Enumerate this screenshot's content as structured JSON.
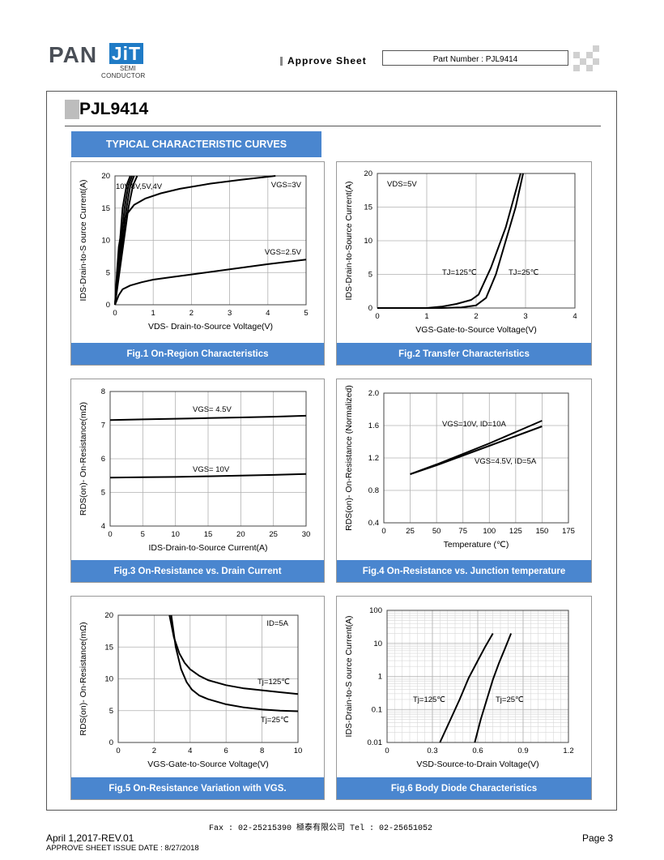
{
  "header": {
    "logo_pan": "PAN",
    "logo_jit": "JiT",
    "logo_semi": "SEMI",
    "logo_conductor": "CONDUCTOR",
    "approve_sheet": "Approve Sheet",
    "part_number": "Part Number : PJL9414"
  },
  "title": "PJL9414",
  "section_title": "TYPICAL CHARACTERISTIC CURVES",
  "colors": {
    "accent": "#4a86cf",
    "grid": "#b0b0b0"
  },
  "figures": [
    {
      "caption": "Fig.1 On-Region Characteristics"
    },
    {
      "caption": "Fig.2 Transfer Characteristics"
    },
    {
      "caption": "Fig.3 On-Resistance vs. Drain Current"
    },
    {
      "caption": "Fig.4 On-Resistance vs. Junction temperature"
    },
    {
      "caption": "Fig.5 On-Resistance Variation with VGS."
    },
    {
      "caption": "Fig.6 Body Diode Characteristics"
    }
  ],
  "chart_data": [
    {
      "type": "line",
      "xlabel": "VDS- Drain-to-Source Voltage(V)",
      "ylabel": "IDS-Drain-to-S ource Current(A)",
      "xlim": [
        0,
        5
      ],
      "ylim": [
        0,
        20
      ],
      "xticks": [
        "0",
        "1",
        "2",
        "3",
        "4",
        "5"
      ],
      "yticks": [
        "0",
        "5",
        "10",
        "15",
        "20"
      ],
      "series": [
        {
          "name": "VGS=3V",
          "x": [
            0,
            0.05,
            0.1,
            0.2,
            0.3,
            0.5,
            0.8,
            1.2,
            1.7,
            2.5,
            3.3,
            4.2
          ],
          "y": [
            0,
            5,
            9,
            12.5,
            14,
            15.5,
            16.5,
            17.3,
            18,
            18.8,
            19.4,
            20
          ]
        },
        {
          "name": "VGS=2.5V",
          "x": [
            0,
            0.1,
            0.2,
            0.4,
            0.7,
            1.0,
            1.5,
            2,
            3,
            4,
            5
          ],
          "y": [
            0,
            1.5,
            2.4,
            3,
            3.5,
            3.9,
            4.3,
            4.7,
            5.5,
            6.3,
            7
          ]
        },
        {
          "name": "10V,8V,5V,4V",
          "x": [
            0,
            0.2,
            0.3,
            0.4
          ],
          "y": [
            0,
            15,
            18.5,
            20
          ]
        },
        {
          "name": "",
          "x": [
            0,
            0.25,
            0.35,
            0.45
          ],
          "y": [
            0,
            15,
            18.5,
            20
          ]
        },
        {
          "name": "",
          "x": [
            0,
            0.3,
            0.4,
            0.5
          ],
          "y": [
            0,
            15,
            18.5,
            20
          ]
        },
        {
          "name": "",
          "x": [
            0,
            0.35,
            0.47,
            0.58
          ],
          "y": [
            0,
            15,
            18.5,
            20
          ]
        }
      ],
      "annotations": [
        "10V,8V,5V,4V",
        "VGS=3V",
        "VGS=2.5V"
      ]
    },
    {
      "type": "line",
      "xlabel": "VGS-Gate-to-Source Voltage(V)",
      "ylabel": "IDS-Drain-to-Source Current(A)",
      "xlim": [
        0,
        4
      ],
      "ylim": [
        0,
        20
      ],
      "xticks": [
        "0",
        "1",
        "2",
        "3",
        "4"
      ],
      "yticks": [
        "0",
        "5",
        "10",
        "15",
        "20"
      ],
      "series": [
        {
          "name": "TJ=125℃",
          "x": [
            0,
            1.0,
            1.3,
            1.6,
            1.9,
            2.05,
            2.3,
            2.6,
            2.9
          ],
          "y": [
            0,
            0,
            0.2,
            0.6,
            1.2,
            2,
            6,
            12,
            20
          ]
        },
        {
          "name": "TJ=25℃",
          "x": [
            0,
            1.3,
            1.7,
            2.0,
            2.2,
            2.4,
            2.6,
            2.8,
            2.95
          ],
          "y": [
            0,
            0,
            0.1,
            0.4,
            1.5,
            5,
            10,
            15,
            20
          ]
        }
      ],
      "annotations": [
        "VDS=5V",
        "TJ=125℃",
        "TJ=25℃"
      ]
    },
    {
      "type": "line",
      "xlabel": "IDS-Drain-to-Source Current(A)",
      "ylabel": "RDS(on)- On-Resistance(mΩ)",
      "xlim": [
        0,
        30
      ],
      "ylim": [
        4,
        8
      ],
      "xticks": [
        "0",
        "5",
        "10",
        "15",
        "20",
        "25",
        "30"
      ],
      "yticks": [
        "4",
        "5",
        "6",
        "7",
        "8"
      ],
      "series": [
        {
          "name": "VGS= 4.5V",
          "x": [
            0,
            5,
            10,
            15,
            20,
            25,
            30
          ],
          "y": [
            7.15,
            7.17,
            7.19,
            7.21,
            7.23,
            7.25,
            7.28
          ]
        },
        {
          "name": "VGS= 10V",
          "x": [
            0,
            5,
            10,
            15,
            20,
            25,
            30
          ],
          "y": [
            5.44,
            5.45,
            5.46,
            5.48,
            5.5,
            5.52,
            5.55
          ]
        }
      ],
      "annotations": [
        "VGS= 4.5V",
        "VGS= 10V"
      ]
    },
    {
      "type": "line",
      "xlabel": "Temperature (℃)",
      "ylabel": "RDS(on)- On-Resistance (Normalized)",
      "xlim": [
        0,
        175
      ],
      "ylim": [
        0.4,
        2.0
      ],
      "xticks": [
        "0",
        "25",
        "50",
        "75",
        "100",
        "125",
        "150",
        "175"
      ],
      "yticks": [
        "0.4",
        "0.8",
        "1.2",
        "1.6",
        "2.0"
      ],
      "series": [
        {
          "name": "VGS=10V, ID=10A",
          "x": [
            25,
            50,
            75,
            100,
            125,
            150
          ],
          "y": [
            1.0,
            1.12,
            1.25,
            1.38,
            1.52,
            1.66
          ]
        },
        {
          "name": "VGS=4.5V, ID=5A",
          "x": [
            25,
            50,
            75,
            100,
            125,
            150
          ],
          "y": [
            1.0,
            1.11,
            1.23,
            1.35,
            1.47,
            1.59
          ]
        }
      ],
      "annotations": [
        "VGS=10V, ID=10A",
        "VGS=4.5V, ID=5A"
      ]
    },
    {
      "type": "line",
      "xlabel": "VGS-Gate-to-Source  Voltage(V)",
      "ylabel": "RDS(on)- On-Resistance(mΩ)",
      "xlim": [
        0,
        10
      ],
      "ylim": [
        0,
        20
      ],
      "xticks": [
        "0",
        "2",
        "4",
        "6",
        "8",
        "10"
      ],
      "yticks": [
        "0",
        "5",
        "10",
        "15",
        "20"
      ],
      "series": [
        {
          "name": "Tj=125℃",
          "x": [
            2.85,
            3.1,
            3.4,
            3.7,
            4,
            4.5,
            5,
            6,
            7,
            8,
            9,
            10
          ],
          "y": [
            20,
            16.5,
            14,
            12.5,
            11.5,
            10.5,
            9.8,
            9,
            8.5,
            8.2,
            7.9,
            7.6
          ]
        },
        {
          "name": "Tj=25℃",
          "x": [
            2.95,
            3.2,
            3.5,
            3.8,
            4.1,
            4.5,
            5,
            6,
            7,
            8,
            9,
            10
          ],
          "y": [
            20,
            15,
            11.5,
            9.5,
            8.3,
            7.4,
            6.8,
            6,
            5.5,
            5.2,
            5,
            4.9
          ]
        }
      ],
      "annotations": [
        "ID=5A",
        "Tj=125℃",
        "Tj=25℃"
      ]
    },
    {
      "type": "line",
      "xlabel": "VSD-Source-to-Drain Voltage(V)",
      "ylabel": "IDS-Drain-to-S ource Current(A)",
      "xlim": [
        0,
        1.2
      ],
      "ylim": [
        0.01,
        100
      ],
      "yscale": "log",
      "xticks": [
        "0",
        "0.3",
        "0.6",
        "0.9",
        "1.2"
      ],
      "yticks": [
        "0.01",
        "0.1",
        "1",
        "10",
        "100"
      ],
      "series": [
        {
          "name": "Tj=125℃",
          "x": [
            0.35,
            0.42,
            0.48,
            0.54,
            0.6,
            0.65,
            0.7
          ],
          "y": [
            0.01,
            0.05,
            0.2,
            0.9,
            3,
            8,
            20
          ]
        },
        {
          "name": "Tj=25℃",
          "x": [
            0.58,
            0.62,
            0.66,
            0.7,
            0.74,
            0.78,
            0.82
          ],
          "y": [
            0.01,
            0.05,
            0.2,
            0.8,
            2.5,
            7,
            20
          ]
        }
      ],
      "annotations": [
        "Tj=125℃",
        "Tj=25℃"
      ]
    }
  ],
  "footer": {
    "fax_line": "Fax : 02-25215390    極泰有限公司    Tel : 02-25651052",
    "date_rev": "April 1,2017-REV.01",
    "issue_date": "APPROVE SHEET ISSUE DATE : 8/27/2018",
    "page": "Page 3"
  }
}
